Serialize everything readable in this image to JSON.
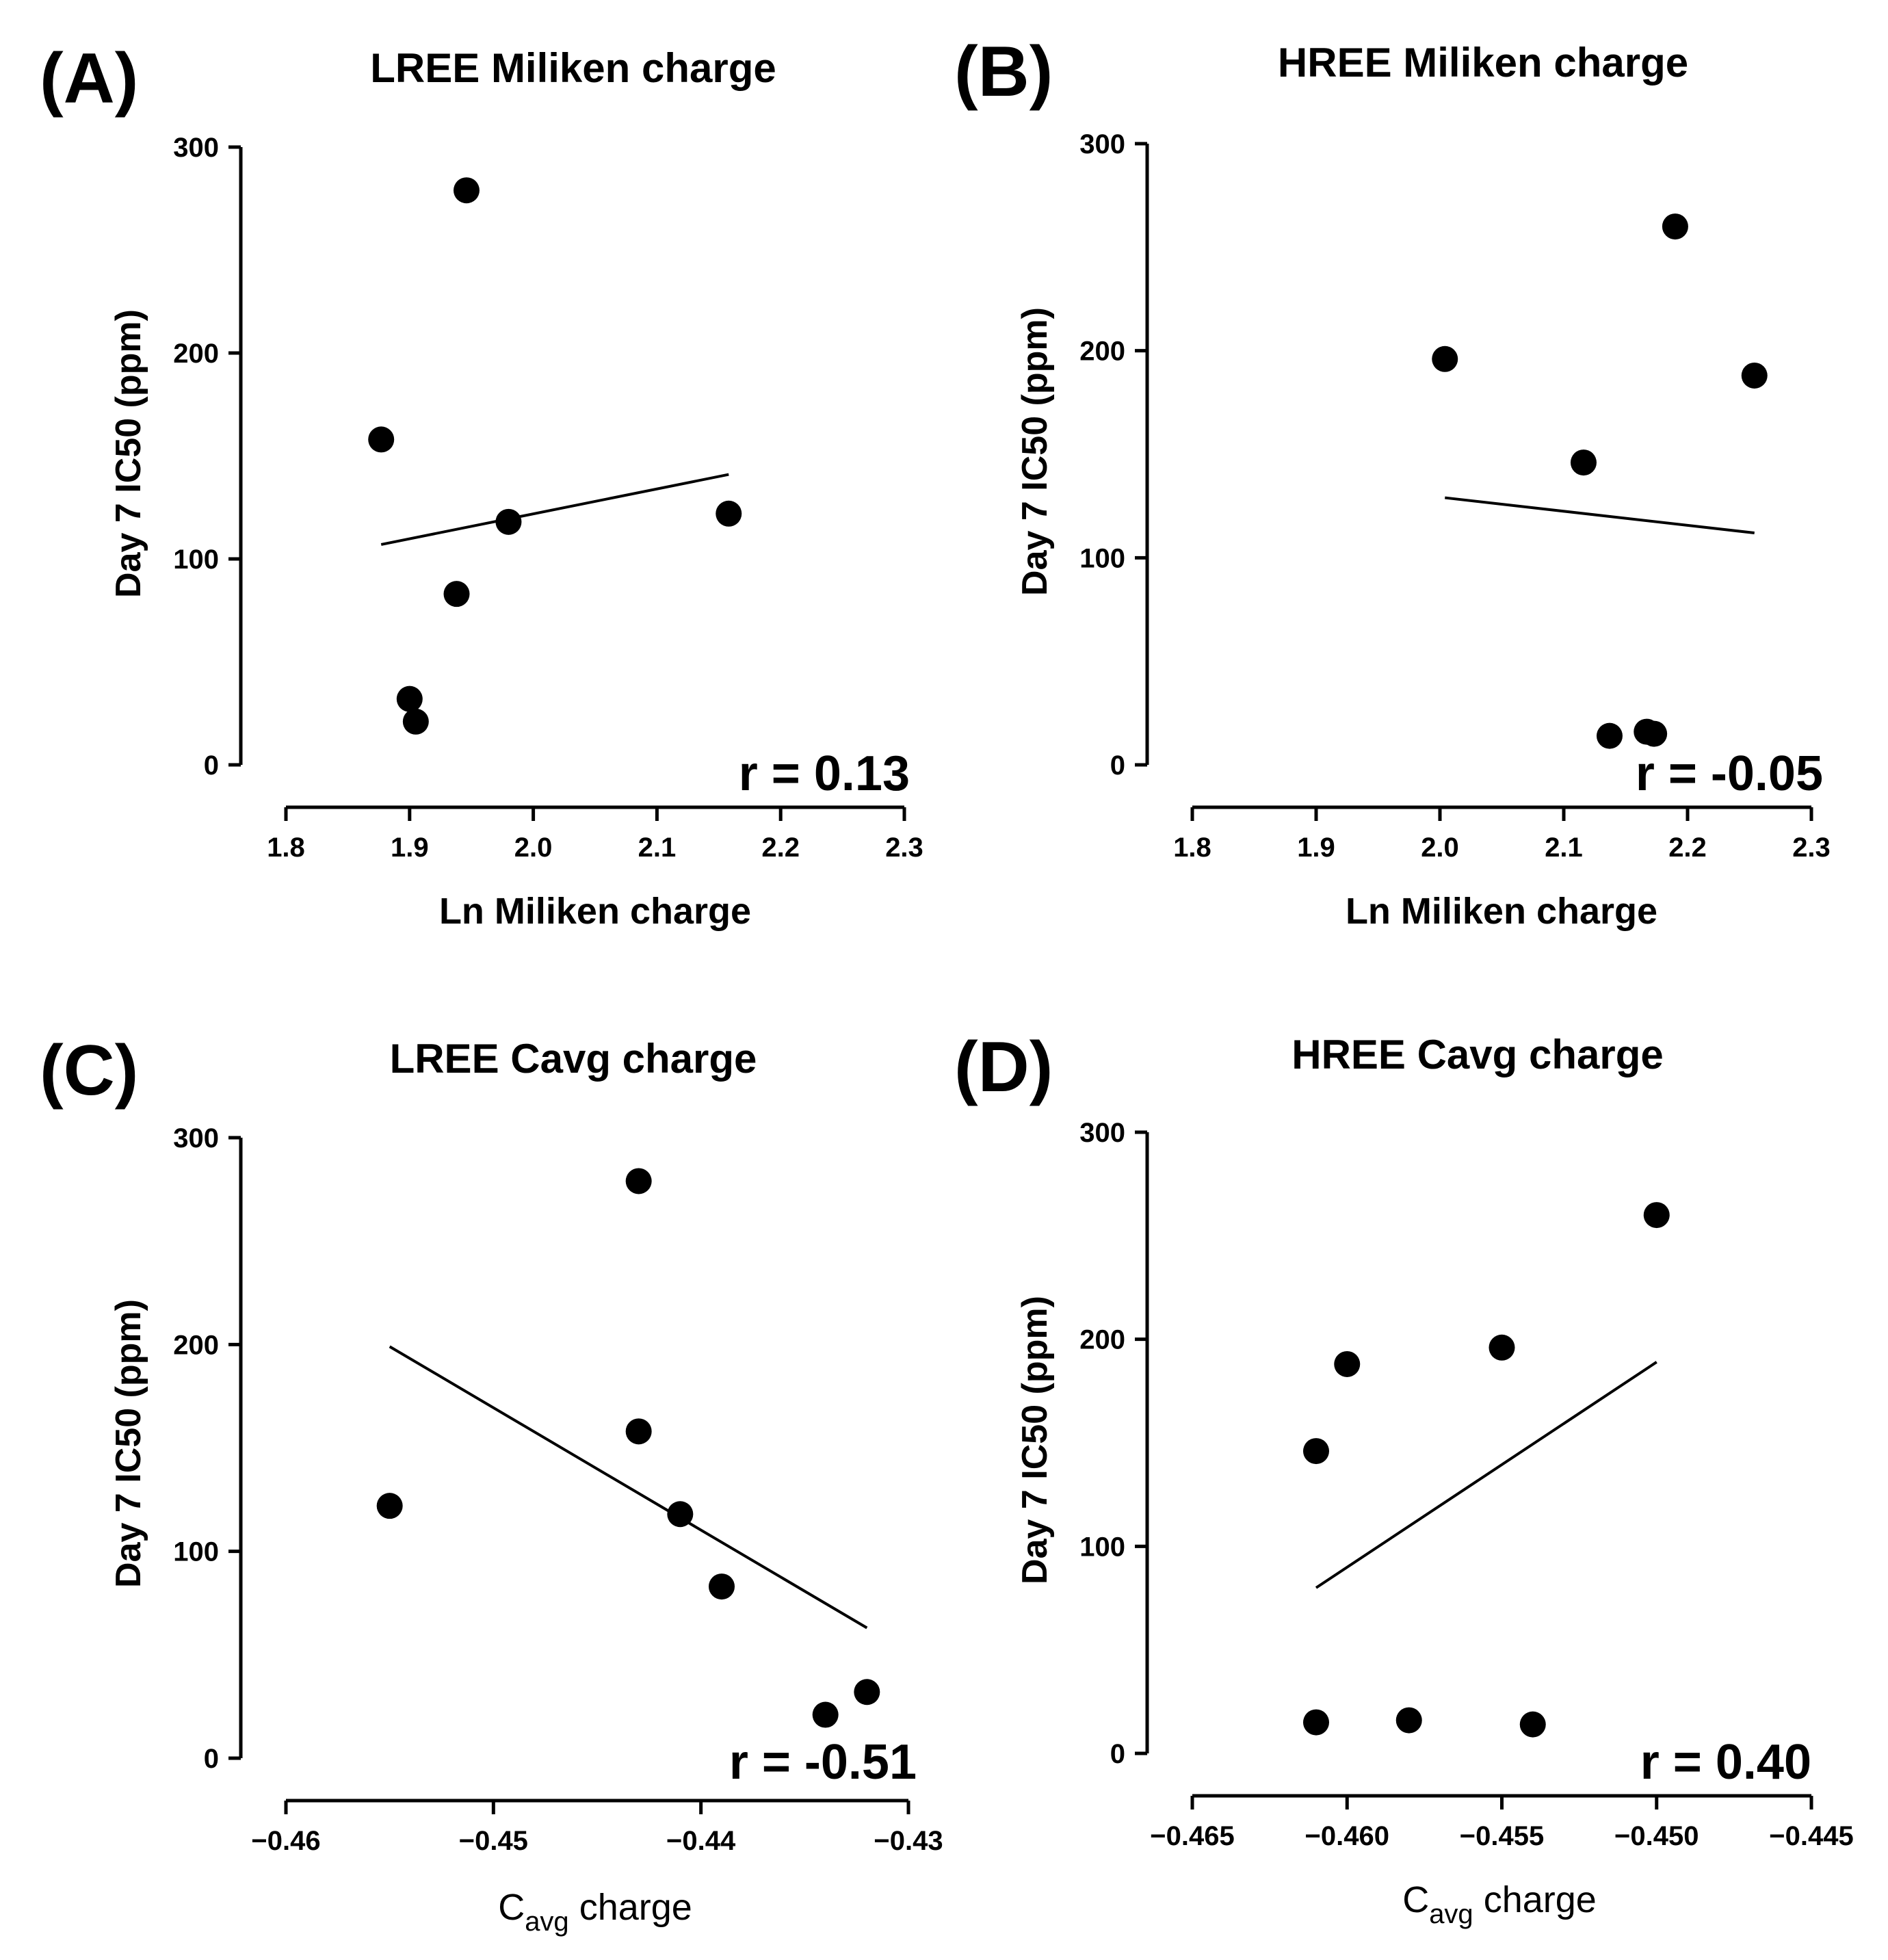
{
  "chart_data": [
    {
      "panel": "(A)",
      "type": "scatter",
      "title": "LREE Miliken charge",
      "xlabel": "Ln Miliken charge",
      "ylabel": "Day 7 IC50 (ppm)",
      "xlim": [
        1.8,
        2.3
      ],
      "ylim": [
        0,
        300
      ],
      "xticks": [
        "1.8",
        "1.9",
        "2.0",
        "2.1",
        "2.2",
        "2.3"
      ],
      "yticks": [
        "0",
        "100",
        "200",
        "300"
      ],
      "x": [
        1.877,
        1.946,
        1.9,
        1.905,
        1.938,
        1.98,
        2.158
      ],
      "y": [
        158,
        279,
        32,
        21,
        83,
        118,
        122
      ],
      "fit": {
        "x": [
          1.877,
          2.158
        ],
        "y": [
          107,
          141
        ]
      },
      "annotation": "r = 0.13"
    },
    {
      "panel": "(B)",
      "type": "scatter",
      "title": "HREE Miliken charge",
      "xlabel": "Ln Miliken charge",
      "ylabel": "Day 7 IC50 (ppm)",
      "xlim": [
        1.8,
        2.3
      ],
      "ylim": [
        0,
        300
      ],
      "xticks": [
        "1.8",
        "1.9",
        "2.0",
        "2.1",
        "2.2",
        "2.3"
      ],
      "yticks": [
        "0",
        "100",
        "200",
        "300"
      ],
      "x": [
        2.004,
        2.116,
        2.137,
        2.167,
        2.173,
        2.19,
        2.254
      ],
      "y": [
        196,
        146,
        14,
        16,
        15,
        260,
        188
      ],
      "fit": {
        "x": [
          2.004,
          2.254
        ],
        "y": [
          129,
          112
        ]
      },
      "annotation": "r = -0.05"
    },
    {
      "panel": "(C)",
      "type": "scatter",
      "title": "LREE Cavg charge",
      "xlabel_main": "C",
      "xlabel_sub": "avg",
      "xlabel_rest": " charge",
      "ylabel": "Day 7 IC50 (ppm)",
      "xlim": [
        -0.46,
        -0.43
      ],
      "ylim": [
        0,
        300
      ],
      "xticks": [
        "−0.46",
        "−0.45",
        "−0.44",
        "−0.43"
      ],
      "yticks": [
        "0",
        "100",
        "200",
        "300"
      ],
      "x": [
        -0.455,
        -0.443,
        -0.443,
        -0.441,
        -0.439,
        -0.434,
        -0.432
      ],
      "y": [
        122,
        279,
        158,
        118,
        83,
        21,
        32
      ],
      "fit": {
        "x": [
          -0.455,
          -0.432
        ],
        "y": [
          199,
          63
        ]
      },
      "annotation": "r = -0.51"
    },
    {
      "panel": "(D)",
      "type": "scatter",
      "title": "HREE Cavg charge",
      "xlabel_main": "C",
      "xlabel_sub": "avg",
      "xlabel_rest": " charge",
      "ylabel": "Day 7 IC50 (ppm)",
      "xlim": [
        -0.465,
        -0.445
      ],
      "ylim": [
        0,
        300
      ],
      "xticks": [
        "−0.465",
        "−0.460",
        "−0.455",
        "−0.450",
        "−0.445"
      ],
      "yticks": [
        "0",
        "100",
        "200",
        "300"
      ],
      "x": [
        -0.461,
        -0.461,
        -0.46,
        -0.458,
        -0.455,
        -0.454,
        -0.45
      ],
      "y": [
        146,
        15,
        188,
        16,
        196,
        14,
        260
      ],
      "fit": {
        "x": [
          -0.461,
          -0.45
        ],
        "y": [
          80,
          189
        ]
      },
      "annotation": "r = 0.40"
    }
  ]
}
